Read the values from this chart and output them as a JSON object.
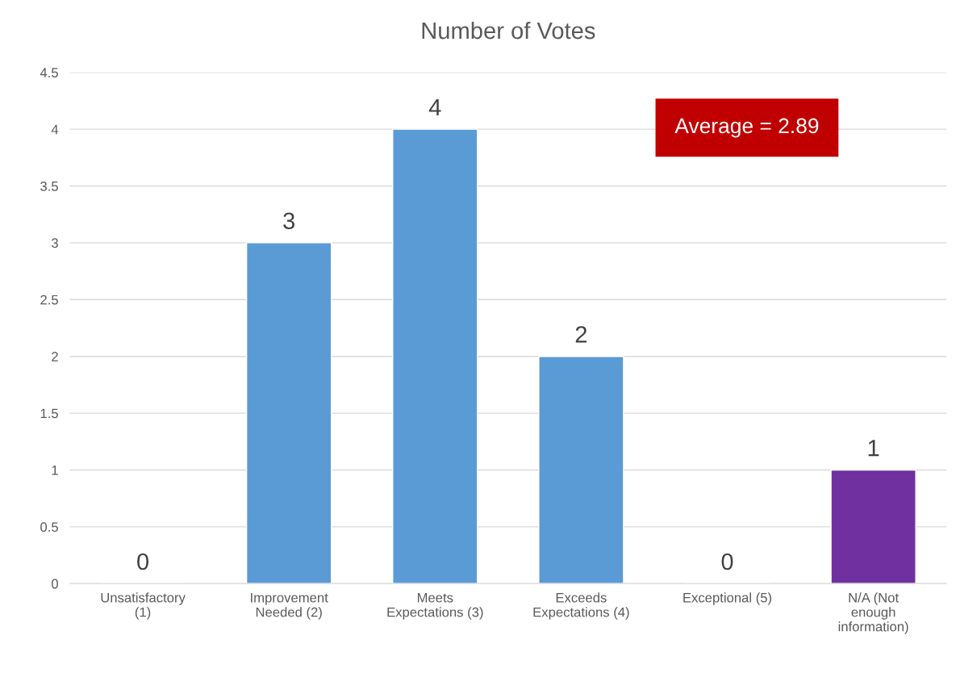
{
  "chart_data": {
    "type": "bar",
    "title": "Number of Votes",
    "categories": [
      "Unsatisfactory\n(1)",
      "Improvement\nNeeded (2)",
      "Meets\nExpectations (3)",
      "Exceeds\nExpectations (4)",
      "Exceptional (5)",
      "N/A (Not\nenough\ninformation)"
    ],
    "values": [
      0,
      3,
      4,
      2,
      0,
      1
    ],
    "colors": [
      null,
      "#5b9bd5",
      "#5b9bd5",
      "#5b9bd5",
      null,
      "#7030a0"
    ],
    "ylim": [
      0,
      4.5
    ],
    "yticks": [
      0,
      0.5,
      1,
      1.5,
      2,
      2.5,
      3,
      3.5,
      4,
      4.5
    ],
    "grid": "y",
    "data_labels": true,
    "legend": false,
    "annotations": [
      "Average = 2.89"
    ]
  }
}
